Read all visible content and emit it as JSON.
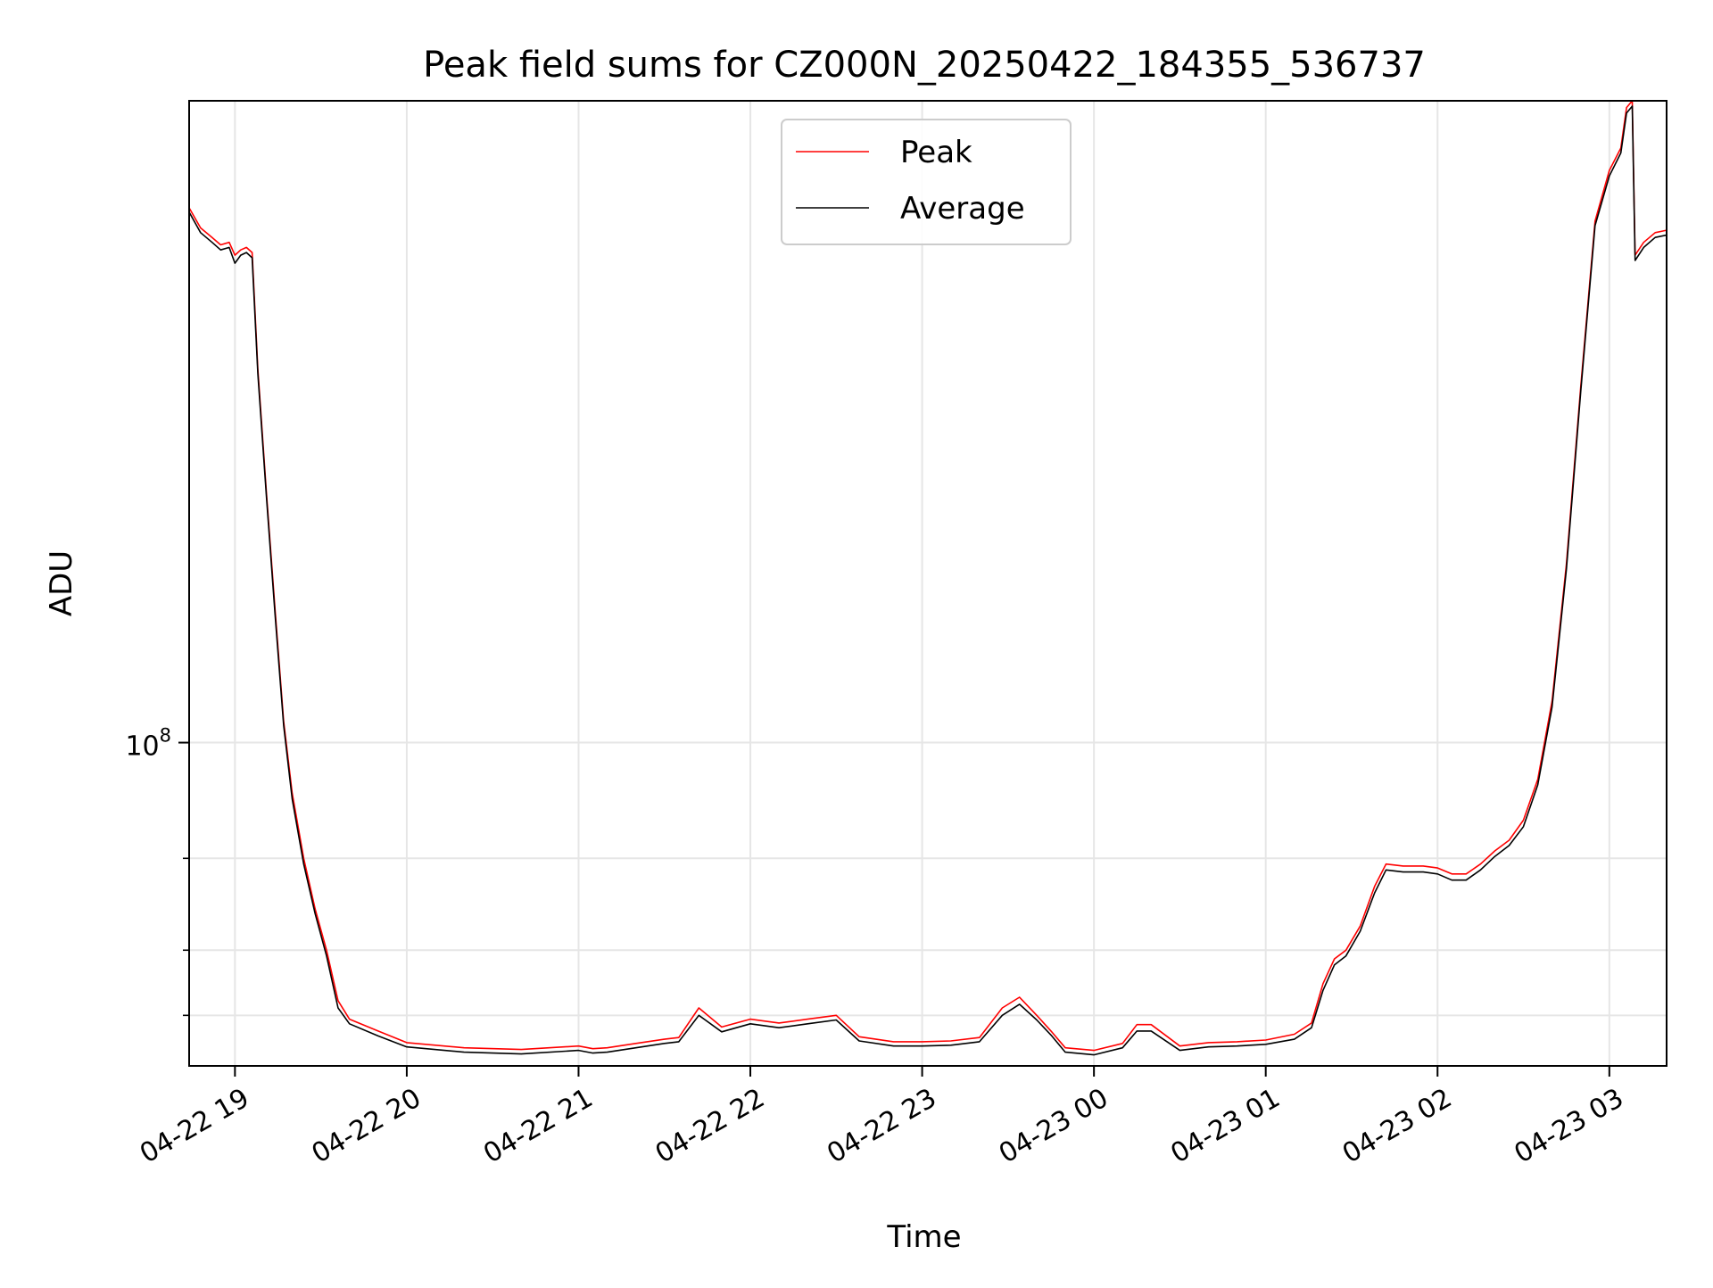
{
  "chart_data": {
    "type": "line",
    "title": "Peak field sums for CZ000N_20250422_184355_536737",
    "xlabel": "Time",
    "ylabel": "ADU",
    "yscale": "log",
    "grid": true,
    "legend_position": "top-center",
    "x_ticks": [
      "04-22 19",
      "04-22 20",
      "04-22 21",
      "04-22 22",
      "04-22 23",
      "04-23 00",
      "04-23 01",
      "04-23 02",
      "04-23 03"
    ],
    "y_ticks_major": [
      {
        "base": "10",
        "exp": "8",
        "value": 100000000
      }
    ],
    "y_ticks_minor": [
      30000000,
      40000000,
      60000000
    ],
    "xlim": [
      "2025-04-22 18:44",
      "2025-04-23 03:20"
    ],
    "ylim": [
      24000000,
      1700000000
    ],
    "series": [
      {
        "name": "Peak",
        "color": "#ff0000",
        "x": [
          "2025-04-22 18:44",
          "2025-04-22 18:48",
          "2025-04-22 18:52",
          "2025-04-22 18:55",
          "2025-04-22 18:58",
          "2025-04-22 19:00",
          "2025-04-22 19:02",
          "2025-04-22 19:04",
          "2025-04-22 19:06",
          "2025-04-22 19:08",
          "2025-04-22 19:11",
          "2025-04-22 19:14",
          "2025-04-22 19:17",
          "2025-04-22 19:20",
          "2025-04-22 19:24",
          "2025-04-22 19:28",
          "2025-04-22 19:32",
          "2025-04-22 19:36",
          "2025-04-22 19:40",
          "2025-04-22 19:50",
          "2025-04-22 20:00",
          "2025-04-22 20:20",
          "2025-04-22 20:40",
          "2025-04-22 21:00",
          "2025-04-22 21:05",
          "2025-04-22 21:10",
          "2025-04-22 21:20",
          "2025-04-22 21:30",
          "2025-04-22 21:35",
          "2025-04-22 21:42",
          "2025-04-22 21:50",
          "2025-04-22 22:00",
          "2025-04-22 22:10",
          "2025-04-22 22:20",
          "2025-04-22 22:30",
          "2025-04-22 22:38",
          "2025-04-22 22:50",
          "2025-04-22 23:00",
          "2025-04-22 23:10",
          "2025-04-22 23:20",
          "2025-04-22 23:28",
          "2025-04-22 23:34",
          "2025-04-22 23:40",
          "2025-04-22 23:45",
          "2025-04-22 23:50",
          "2025-04-23 00:00",
          "2025-04-23 00:10",
          "2025-04-23 00:15",
          "2025-04-23 00:20",
          "2025-04-23 00:30",
          "2025-04-23 00:40",
          "2025-04-23 00:50",
          "2025-04-23 01:00",
          "2025-04-23 01:10",
          "2025-04-23 01:16",
          "2025-04-23 01:20",
          "2025-04-23 01:24",
          "2025-04-23 01:28",
          "2025-04-23 01:33",
          "2025-04-23 01:38",
          "2025-04-23 01:42",
          "2025-04-23 01:48",
          "2025-04-23 01:55",
          "2025-04-23 02:00",
          "2025-04-23 02:05",
          "2025-04-23 02:10",
          "2025-04-23 02:15",
          "2025-04-23 02:20",
          "2025-04-23 02:25",
          "2025-04-23 02:30",
          "2025-04-23 02:35",
          "2025-04-23 02:40",
          "2025-04-23 02:45",
          "2025-04-23 02:50",
          "2025-04-23 02:55",
          "2025-04-23 03:00",
          "2025-04-23 03:04",
          "2025-04-23 03:06",
          "2025-04-23 03:08",
          "2025-04-23 03:09",
          "2025-04-23 03:12",
          "2025-04-23 03:16",
          "2025-04-23 03:20"
        ],
        "values": [
          1060000000,
          970000000,
          930000000,
          900000000,
          910000000,
          860000000,
          880000000,
          890000000,
          870000000,
          520000000,
          300000000,
          180000000,
          110000000,
          80000000,
          60000000,
          48000000,
          40000000,
          32000000,
          29500000,
          28000000,
          26600000,
          26000000,
          25800000,
          26200000,
          25900000,
          26000000,
          26500000,
          27000000,
          27200000,
          31000000,
          28500000,
          29500000,
          29000000,
          29500000,
          30000000,
          27300000,
          26700000,
          26700000,
          26800000,
          27200000,
          31000000,
          32500000,
          30000000,
          28000000,
          26000000,
          25700000,
          26500000,
          28800000,
          28800000,
          26200000,
          26600000,
          26700000,
          26900000,
          27600000,
          29000000,
          34500000,
          38500000,
          40000000,
          44500000,
          53000000,
          58500000,
          58000000,
          58000000,
          57500000,
          56000000,
          56000000,
          58500000,
          62000000,
          65000000,
          71000000,
          85000000,
          120000000,
          220000000,
          480000000,
          1000000000,
          1250000000,
          1380000000,
          1650000000,
          1700000000,
          860000000,
          910000000,
          950000000,
          960000000
        ]
      },
      {
        "name": "Average",
        "color": "#000000",
        "x": [
          "2025-04-22 18:44",
          "2025-04-22 18:48",
          "2025-04-22 18:52",
          "2025-04-22 18:55",
          "2025-04-22 18:58",
          "2025-04-22 19:00",
          "2025-04-22 19:02",
          "2025-04-22 19:04",
          "2025-04-22 19:06",
          "2025-04-22 19:08",
          "2025-04-22 19:11",
          "2025-04-22 19:14",
          "2025-04-22 19:17",
          "2025-04-22 19:20",
          "2025-04-22 19:24",
          "2025-04-22 19:28",
          "2025-04-22 19:32",
          "2025-04-22 19:36",
          "2025-04-22 19:40",
          "2025-04-22 19:50",
          "2025-04-22 20:00",
          "2025-04-22 20:20",
          "2025-04-22 20:40",
          "2025-04-22 21:00",
          "2025-04-22 21:05",
          "2025-04-22 21:10",
          "2025-04-22 21:20",
          "2025-04-22 21:30",
          "2025-04-22 21:35",
          "2025-04-22 21:42",
          "2025-04-22 21:50",
          "2025-04-22 22:00",
          "2025-04-22 22:10",
          "2025-04-22 22:20",
          "2025-04-22 22:30",
          "2025-04-22 22:38",
          "2025-04-22 22:50",
          "2025-04-22 23:00",
          "2025-04-22 23:10",
          "2025-04-22 23:20",
          "2025-04-22 23:28",
          "2025-04-22 23:34",
          "2025-04-22 23:40",
          "2025-04-22 23:45",
          "2025-04-22 23:50",
          "2025-04-23 00:00",
          "2025-04-23 00:10",
          "2025-04-23 00:15",
          "2025-04-23 00:20",
          "2025-04-23 00:30",
          "2025-04-23 00:40",
          "2025-04-23 00:50",
          "2025-04-23 01:00",
          "2025-04-23 01:10",
          "2025-04-23 01:16",
          "2025-04-23 01:20",
          "2025-04-23 01:24",
          "2025-04-23 01:28",
          "2025-04-23 01:33",
          "2025-04-23 01:38",
          "2025-04-23 01:42",
          "2025-04-23 01:48",
          "2025-04-23 01:55",
          "2025-04-23 02:00",
          "2025-04-23 02:05",
          "2025-04-23 02:10",
          "2025-04-23 02:15",
          "2025-04-23 02:20",
          "2025-04-23 02:25",
          "2025-04-23 02:30",
          "2025-04-23 02:35",
          "2025-04-23 02:40",
          "2025-04-23 02:45",
          "2025-04-23 02:50",
          "2025-04-23 02:55",
          "2025-04-23 03:00",
          "2025-04-23 03:04",
          "2025-04-23 03:06",
          "2025-04-23 03:08",
          "2025-04-23 03:09",
          "2025-04-23 03:12",
          "2025-04-23 03:16",
          "2025-04-23 03:20"
        ],
        "values": [
          1040000000,
          950000000,
          910000000,
          880000000,
          890000000,
          830000000,
          860000000,
          870000000,
          850000000,
          510000000,
          295000000,
          176000000,
          108000000,
          78000000,
          58500000,
          47000000,
          39000000,
          31000000,
          28900000,
          27400000,
          26100000,
          25500000,
          25300000,
          25700000,
          25400000,
          25500000,
          26000000,
          26500000,
          26700000,
          30000000,
          27900000,
          28900000,
          28400000,
          28900000,
          29400000,
          26800000,
          26200000,
          26200000,
          26300000,
          26700000,
          30000000,
          31500000,
          29400000,
          27500000,
          25500000,
          25200000,
          26000000,
          28000000,
          28000000,
          25700000,
          26100000,
          26200000,
          26400000,
          27000000,
          28400000,
          33500000,
          37500000,
          39000000,
          43500000,
          51500000,
          57000000,
          56500000,
          56500000,
          56000000,
          54500000,
          54500000,
          57000000,
          60500000,
          63500000,
          69000000,
          83000000,
          117000000,
          215000000,
          470000000,
          980000000,
          1220000000,
          1350000000,
          1610000000,
          1660000000,
          840000000,
          890000000,
          930000000,
          940000000
        ]
      }
    ]
  }
}
